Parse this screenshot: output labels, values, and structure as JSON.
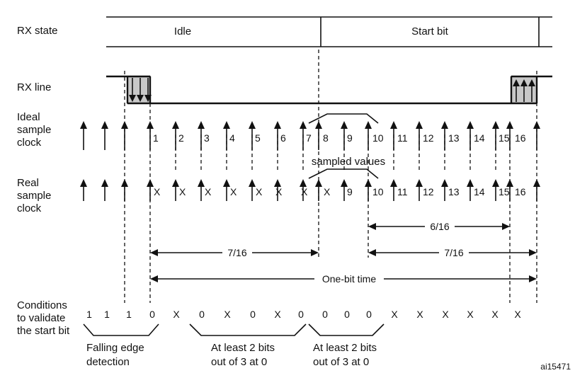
{
  "labels": {
    "rx_state": "RX state",
    "rx_line": "RX line",
    "ideal_clock": [
      "Ideal",
      "sample",
      "clock"
    ],
    "real_clock": [
      "Real",
      "sample",
      "clock"
    ],
    "conditions": [
      "Conditions",
      "to validate",
      "the start bit"
    ]
  },
  "states": {
    "idle": "Idle",
    "start_bit": "Start bit"
  },
  "ideal_numbers": [
    "1",
    "2",
    "3",
    "4",
    "5",
    "6",
    "7",
    "8",
    "9",
    "10",
    "11",
    "12",
    "13",
    "14",
    "15",
    "16"
  ],
  "real_numbers": [
    "X",
    "X",
    "X",
    "X",
    "X",
    "X",
    "X",
    "X",
    "9",
    "10",
    "11",
    "12",
    "13",
    "14",
    "15",
    "16"
  ],
  "sampled_values": "sampled values",
  "measures": {
    "six_16": "6/16",
    "seven_16_left": "7/16",
    "seven_16_right": "7/16",
    "one_bit_time": "One-bit time"
  },
  "condition_values": [
    "1",
    "1",
    "1",
    "0",
    "X",
    "0",
    "X",
    "0",
    "X",
    "0",
    "0",
    "0",
    "0",
    "X",
    "X",
    "X",
    "X",
    "X",
    "X"
  ],
  "brackets": {
    "falling_edge": [
      "Falling edge",
      "detection"
    ],
    "at_least_a": [
      "At least 2 bits",
      "out of 3 at 0"
    ],
    "at_least_b": [
      "At least 2 bits",
      "out of 3 at 0"
    ]
  },
  "figure_id": "ai15471"
}
